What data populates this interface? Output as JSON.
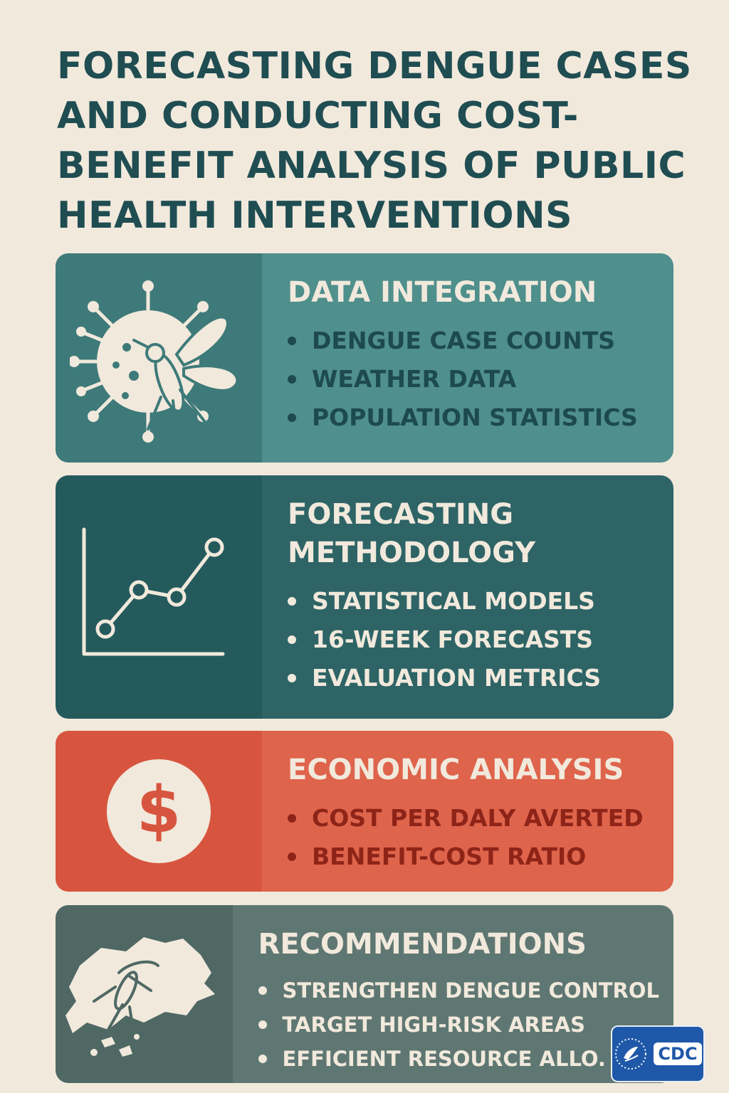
{
  "title": "FORECASTING DENGUE CASES AND CONDUCTING COST-BENEFIT ANALYSIS OF PUBLIC HEALTH INTERVENTIONS",
  "sections": [
    {
      "heading": "DATA INTEGRATION",
      "icon": "virus-mosquito-icon",
      "items": [
        "DENGUE CASE COUNTS",
        "WEATHER DATA",
        "POPULATION STATISTICS"
      ]
    },
    {
      "heading": "FORECASTING METHODOLOGY",
      "icon": "line-chart-icon",
      "items": [
        "STATISTICAL MODELS",
        "16-WEEK FORECASTS",
        "EVALUATION METRICS"
      ]
    },
    {
      "heading": "ECONOMIC ANALYSIS",
      "icon": "dollar-icon",
      "items": [
        "COST PER DALY AVERTED",
        "BENEFIT-COST RATIO"
      ]
    },
    {
      "heading": "RECOMMENDATIONS",
      "icon": "map-mosquito-icon",
      "items": [
        "STRENGTHEN DENGUE CONTROL",
        "TARGET HIGH-RISK AREAS",
        "EFFICIENT RESOURCE ALLO."
      ]
    }
  ],
  "logo": {
    "text": "CDC",
    "icon": "hhs-eagle-icon"
  },
  "colors": {
    "background": "#f1e9dc",
    "title": "#1f4d52",
    "teal": "#4f8f8c",
    "dark_teal": "#2e6466",
    "red": "#df644c",
    "slate": "#5f7772",
    "logo_blue": "#1f58a8"
  }
}
